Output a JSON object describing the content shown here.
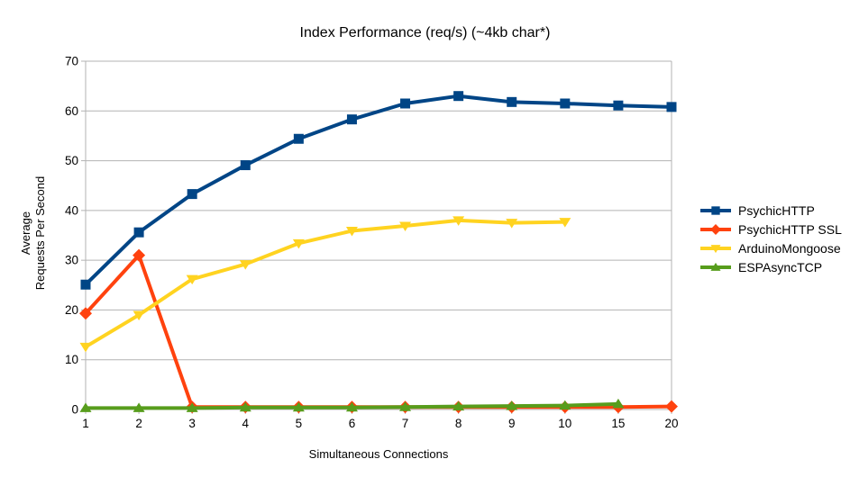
{
  "chart_data": {
    "type": "line",
    "title": "Index Performance (req/s) (~4kb char*)",
    "xlabel": "Simultaneous Connections",
    "ylabel_lines": [
      "Average",
      "Requests Per Second"
    ],
    "categories": [
      "1",
      "2",
      "3",
      "4",
      "5",
      "6",
      "7",
      "8",
      "9",
      "10",
      "15",
      "20"
    ],
    "ylim": [
      0,
      70
    ],
    "ytick_step": 10,
    "grid": "horizontal",
    "legend_position": "right",
    "axis_color": "#b3b3b3",
    "text_color": "#000000",
    "background_color": "#ffffff",
    "series": [
      {
        "name": "PsychicHTTP",
        "color": "#004586",
        "marker": "square",
        "values": [
          25.1,
          35.6,
          43.3,
          49.1,
          54.4,
          58.3,
          61.5,
          63.0,
          61.8,
          61.5,
          61.1,
          60.8
        ]
      },
      {
        "name": "PsychicHTTP SSL",
        "color": "#ff420e",
        "marker": "diamond",
        "values": [
          19.3,
          31.0,
          0.5,
          0.5,
          0.5,
          0.5,
          0.5,
          0.5,
          0.5,
          0.5,
          0.5,
          0.6
        ]
      },
      {
        "name": "ArduinoMongoose",
        "color": "#ffd320",
        "marker": "triangle-down",
        "values": [
          12.6,
          19.0,
          26.2,
          29.2,
          33.4,
          35.9,
          36.9,
          38.0,
          37.5,
          37.7,
          null,
          null
        ]
      },
      {
        "name": "ESPAsyncTCP",
        "color": "#579d1c",
        "marker": "triangle-up",
        "values": [
          0.3,
          0.3,
          0.3,
          0.4,
          0.4,
          0.4,
          0.5,
          0.6,
          0.7,
          0.8,
          1.1,
          null
        ]
      }
    ]
  }
}
